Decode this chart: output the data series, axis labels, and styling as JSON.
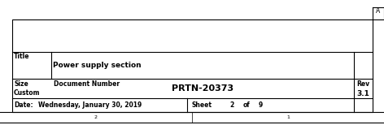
{
  "bg_color": "#ffffff",
  "border_color": "#000000",
  "text_color": "#000000",
  "title_label": "Title",
  "title_value": "Power supply section",
  "size_label": "Size",
  "size_value": "Custom",
  "docnum_label": "Document Number",
  "docnum_value": "PRTN-20373",
  "rev_label": "Rev",
  "rev_value": "3.1",
  "date_label": "Date:",
  "date_value": "Wednesday, January 30, 2019",
  "sheet_label": "Sheet",
  "sheet_num": "2",
  "of_label": "of",
  "total_sheets": "9",
  "bottom_left_num": "2",
  "bottom_right_num": "1",
  "corner_mark": "A",
  "lw": 0.8,
  "thin_lw": 0.5,
  "font": "DejaVu Sans"
}
